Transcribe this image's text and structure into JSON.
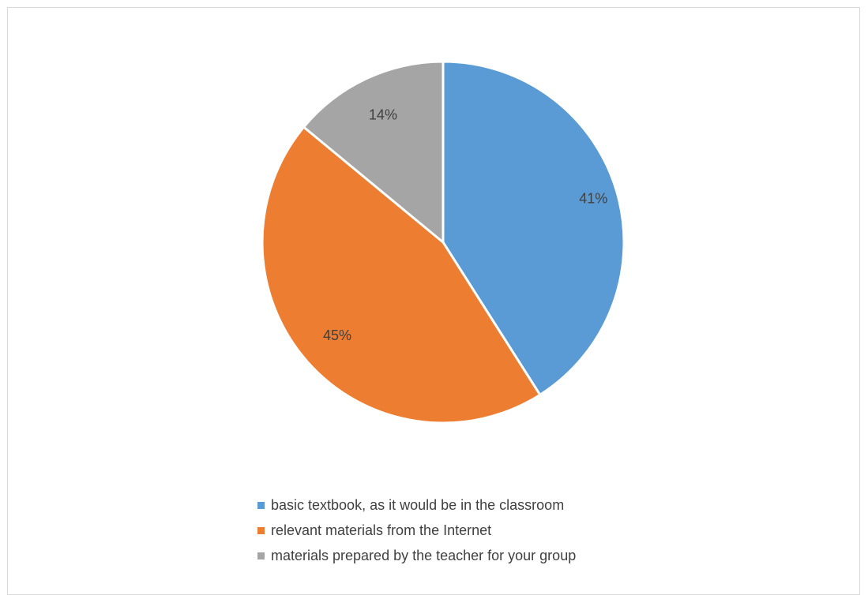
{
  "chart_data": {
    "type": "pie",
    "title": "",
    "categories": [
      "basic textbook, as it would be in the classroom",
      "relevant materials from the Internet",
      "materials prepared by the teacher for your group"
    ],
    "values": [
      41,
      45,
      14
    ],
    "data_labels": [
      "41%",
      "45%",
      "14%"
    ],
    "colors": [
      "#5b9bd5",
      "#ed7d31",
      "#a5a5a5"
    ],
    "start_angle_deg": 0,
    "direction": "clockwise",
    "legend_position": "bottom"
  }
}
